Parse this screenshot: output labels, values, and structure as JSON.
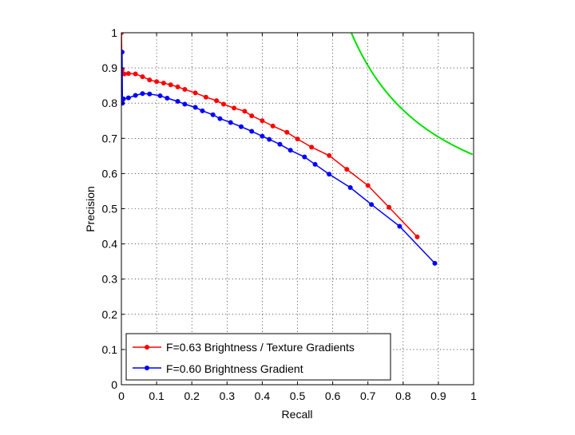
{
  "chart_data": {
    "type": "line",
    "title": "",
    "xlabel": "Recall",
    "ylabel": "Precision",
    "xlim": [
      0,
      1
    ],
    "ylim": [
      0,
      1
    ],
    "xticks": [
      0,
      0.1,
      0.2,
      0.3,
      0.4,
      0.5,
      0.6,
      0.7,
      0.8,
      0.9,
      1
    ],
    "yticks": [
      0,
      0.1,
      0.2,
      0.3,
      0.4,
      0.5,
      0.6,
      0.7,
      0.8,
      0.9,
      1
    ],
    "xtick_labels": [
      "0",
      "0.1",
      "0.2",
      "0.3",
      "0.4",
      "0.5",
      "0.6",
      "0.7",
      "0.8",
      "0.9",
      "1"
    ],
    "ytick_labels": [
      "0",
      "0.1",
      "0.2",
      "0.3",
      "0.4",
      "0.5",
      "0.6",
      "0.7",
      "0.8",
      "0.9",
      "1"
    ],
    "grid": true,
    "legend_position": "bottom-left",
    "series": [
      {
        "name": "F=0.63 Brightness / Texture Gradients",
        "color": "#ff0000",
        "marker": "dot",
        "points": [
          [
            0.0,
            1.0
          ],
          [
            0.002,
            0.895
          ],
          [
            0.008,
            0.883
          ],
          [
            0.02,
            0.884
          ],
          [
            0.04,
            0.883
          ],
          [
            0.06,
            0.875
          ],
          [
            0.08,
            0.866
          ],
          [
            0.1,
            0.861
          ],
          [
            0.12,
            0.857
          ],
          [
            0.14,
            0.852
          ],
          [
            0.16,
            0.846
          ],
          [
            0.18,
            0.839
          ],
          [
            0.21,
            0.829
          ],
          [
            0.24,
            0.817
          ],
          [
            0.27,
            0.807
          ],
          [
            0.29,
            0.797
          ],
          [
            0.32,
            0.786
          ],
          [
            0.35,
            0.777
          ],
          [
            0.37,
            0.764
          ],
          [
            0.4,
            0.75
          ],
          [
            0.43,
            0.735
          ],
          [
            0.47,
            0.717
          ],
          [
            0.5,
            0.698
          ],
          [
            0.54,
            0.675
          ],
          [
            0.59,
            0.651
          ],
          [
            0.64,
            0.612
          ],
          [
            0.7,
            0.566
          ],
          [
            0.76,
            0.504
          ],
          [
            0.84,
            0.42
          ]
        ]
      },
      {
        "name": "F=0.60 Brightness Gradient",
        "color": "#0000ff",
        "marker": "dot",
        "points": [
          [
            0.002,
            0.945
          ],
          [
            0.003,
            0.8
          ],
          [
            0.006,
            0.812
          ],
          [
            0.02,
            0.815
          ],
          [
            0.04,
            0.822
          ],
          [
            0.06,
            0.827
          ],
          [
            0.08,
            0.826
          ],
          [
            0.11,
            0.821
          ],
          [
            0.13,
            0.814
          ],
          [
            0.16,
            0.805
          ],
          [
            0.18,
            0.797
          ],
          [
            0.21,
            0.788
          ],
          [
            0.23,
            0.778
          ],
          [
            0.26,
            0.767
          ],
          [
            0.28,
            0.756
          ],
          [
            0.31,
            0.745
          ],
          [
            0.34,
            0.733
          ],
          [
            0.37,
            0.72
          ],
          [
            0.4,
            0.706
          ],
          [
            0.42,
            0.697
          ],
          [
            0.45,
            0.683
          ],
          [
            0.48,
            0.666
          ],
          [
            0.52,
            0.647
          ],
          [
            0.55,
            0.626
          ],
          [
            0.59,
            0.598
          ],
          [
            0.65,
            0.56
          ],
          [
            0.71,
            0.512
          ],
          [
            0.79,
            0.45
          ],
          [
            0.89,
            0.345
          ]
        ]
      },
      {
        "color": "#00e000",
        "marker": "none",
        "curve": "iso-F",
        "f_value": 0.79
      }
    ]
  }
}
